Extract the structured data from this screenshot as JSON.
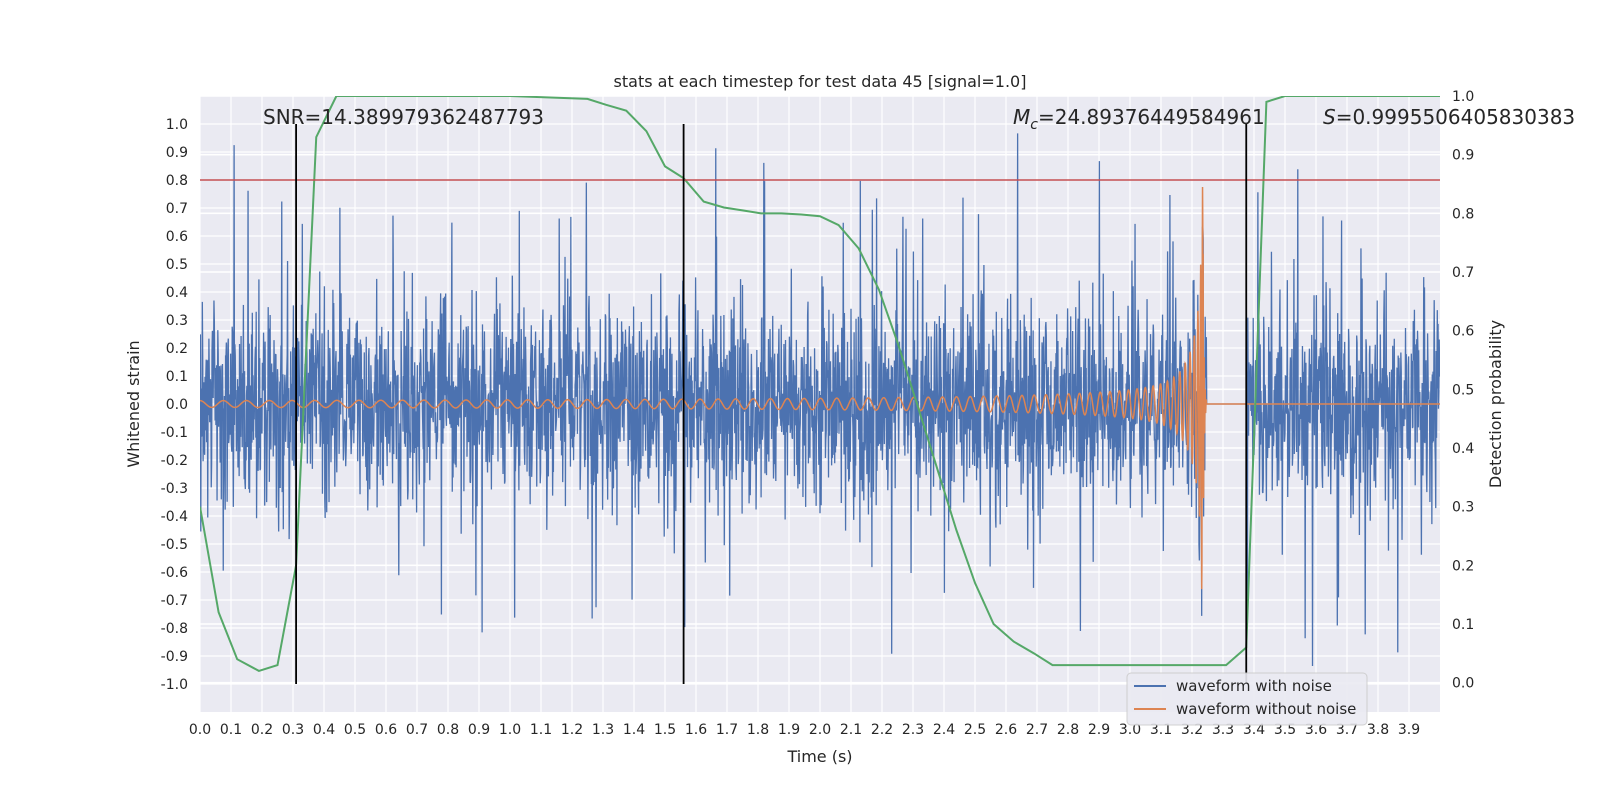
{
  "chart_data": {
    "type": "line",
    "title": "stats at each timestep for test data 45 [signal=1.0]",
    "xlabel": "Time (s)",
    "ylabel": "Whitened strain",
    "ylabel_right": "Detection probability",
    "xlim": [
      0.0,
      4.0
    ],
    "ylim": [
      -1.1,
      1.1
    ],
    "ylim_right": [
      -0.05,
      1.0
    ],
    "x_ticks": [
      "0.0",
      "0.1",
      "0.2",
      "0.3",
      "0.4",
      "0.5",
      "0.6",
      "0.7",
      "0.8",
      "0.9",
      "1.0",
      "1.1",
      "1.2",
      "1.3",
      "1.4",
      "1.5",
      "1.6",
      "1.7",
      "1.8",
      "1.9",
      "2.0",
      "2.1",
      "2.2",
      "2.3",
      "2.4",
      "2.5",
      "2.6",
      "2.7",
      "2.8",
      "2.9",
      "3.0",
      "3.1",
      "3.2",
      "3.3",
      "3.4",
      "3.5",
      "3.6",
      "3.7",
      "3.8",
      "3.9"
    ],
    "y_ticks": [
      "1.0",
      "0.9",
      "0.8",
      "0.7",
      "0.6",
      "0.5",
      "0.4",
      "0.3",
      "0.2",
      "0.1",
      "0.0",
      "-0.1",
      "-0.2",
      "-0.3",
      "-0.4",
      "-0.5",
      "-0.6",
      "-0.7",
      "-0.8",
      "-0.9",
      "-1.0"
    ],
    "y_ticks_right": [
      "1.0",
      "0.9",
      "0.8",
      "0.7",
      "0.6",
      "0.5",
      "0.4",
      "0.3",
      "0.2",
      "0.1",
      "0.0"
    ],
    "annotations": {
      "snr": "SNR=14.389979362487793",
      "mc": "=24.89376449584961",
      "mc_symbol": "M",
      "mc_sub": "c",
      "s": "=0.9995506405830383",
      "s_symbol": "S"
    },
    "threshold": {
      "value": 0.8,
      "color": "#c44e52"
    },
    "vlines": [
      0.31,
      1.56,
      3.375
    ],
    "series": [
      {
        "name": "waveform with noise",
        "color": "#4c72b0",
        "noise_sigma": 0.18,
        "spike_max": 1.0,
        "t_end": 4.0
      },
      {
        "name": "waveform without noise",
        "color": "#dd8452",
        "merger_time": 3.235,
        "peak_amplitude": 0.8,
        "start_amplitude": 0.012
      },
      {
        "name": "detection probability",
        "color": "#55a868",
        "t": [
          0.0,
          0.06,
          0.12,
          0.19,
          0.25,
          0.31,
          0.375,
          0.44,
          0.5,
          1.0,
          1.25,
          1.31,
          1.375,
          1.44,
          1.5,
          1.56,
          1.625,
          1.69,
          1.75,
          1.81,
          1.875,
          1.94,
          2.0,
          2.06,
          2.125,
          2.19,
          2.25,
          2.31,
          2.375,
          2.44,
          2.5,
          2.56,
          2.625,
          2.69,
          2.75,
          2.81,
          2.875,
          2.94,
          3.0,
          3.06,
          3.125,
          3.19,
          3.25,
          3.31,
          3.375,
          3.44,
          3.5,
          3.9,
          4.0
        ],
        "p": [
          0.3,
          0.12,
          0.04,
          0.02,
          0.03,
          0.2,
          0.93,
          1.0,
          1.0,
          1.0,
          0.995,
          0.985,
          0.975,
          0.94,
          0.88,
          0.86,
          0.82,
          0.81,
          0.805,
          0.8,
          0.8,
          0.798,
          0.795,
          0.78,
          0.74,
          0.67,
          0.58,
          0.48,
          0.37,
          0.26,
          0.17,
          0.1,
          0.07,
          0.05,
          0.03,
          0.03,
          0.03,
          0.03,
          0.03,
          0.03,
          0.03,
          0.03,
          0.03,
          0.03,
          0.06,
          0.99,
          1.0,
          1.0,
          1.0
        ]
      }
    ],
    "legend": {
      "location": "lower-right",
      "entries": [
        {
          "label": "waveform with noise",
          "color": "#4c72b0"
        },
        {
          "label": "waveform without noise",
          "color": "#dd8452"
        }
      ]
    },
    "colors": {
      "axes_bg": "#eaeaf2",
      "grid": "#ffffff",
      "vline": "#000000",
      "text": "#262626"
    }
  }
}
